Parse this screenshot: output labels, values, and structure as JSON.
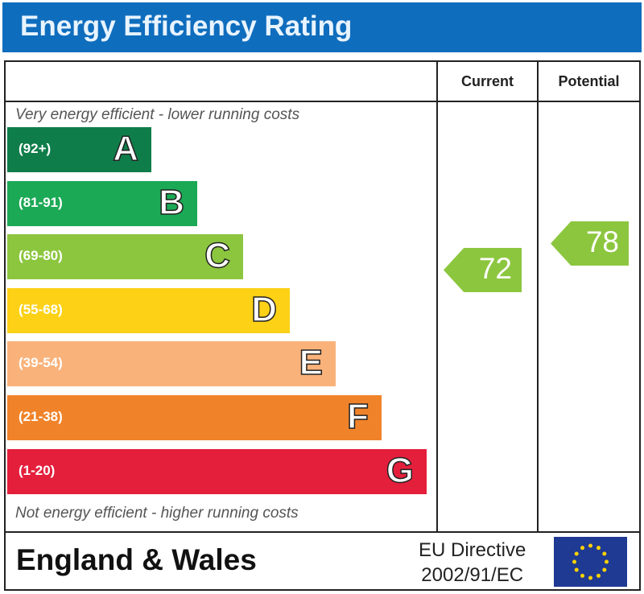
{
  "title": "Energy Efficiency Rating",
  "columns": {
    "current": "Current",
    "potential": "Potential"
  },
  "top_caption": "Very energy efficient - lower running costs",
  "bottom_caption": "Not energy efficient - higher running costs",
  "footer": {
    "region": "England & Wales",
    "directive_line1": "EU Directive",
    "directive_line2": "2002/91/EC",
    "flag_icon": "eu-flag"
  },
  "chart_data": {
    "type": "bar",
    "title": "Energy Efficiency Rating",
    "bands": [
      {
        "letter": "A",
        "range": "(92+)",
        "color": "#0f7d4a"
      },
      {
        "letter": "B",
        "range": "(81-91)",
        "color": "#1ba955"
      },
      {
        "letter": "C",
        "range": "(69-80)",
        "color": "#8cc63f"
      },
      {
        "letter": "D",
        "range": "(55-68)",
        "color": "#fcd116"
      },
      {
        "letter": "E",
        "range": "(39-54)",
        "color": "#f9b27a"
      },
      {
        "letter": "F",
        "range": "(21-38)",
        "color": "#f0832a"
      },
      {
        "letter": "G",
        "range": "(1-20)",
        "color": "#e41f3c"
      }
    ],
    "current": {
      "value": 72,
      "band": "C",
      "color": "#8cc63f"
    },
    "potential": {
      "value": 78,
      "band": "C",
      "color": "#8cc63f"
    }
  }
}
